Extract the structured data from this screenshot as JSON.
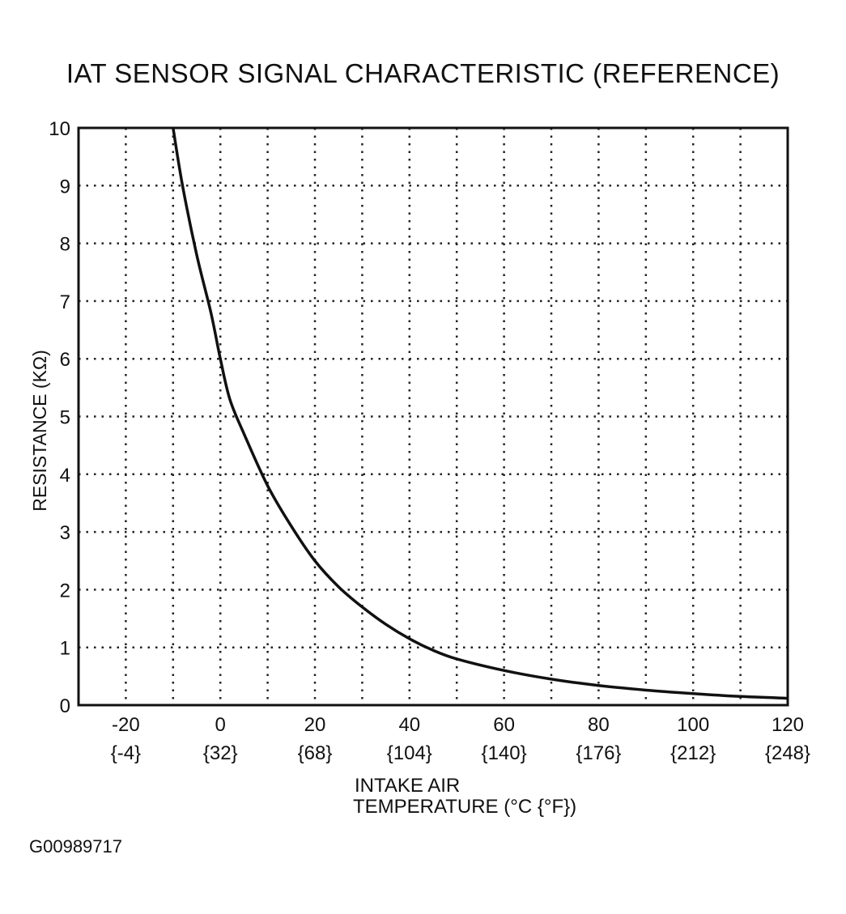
{
  "figure_id": "G00989717",
  "chart_data": {
    "type": "line",
    "title": "IAT SENSOR SIGNAL CHARACTERISTIC (REFERENCE)",
    "xlabel_lines": [
      "INTAKE AIR",
      "TEMPERATURE  (°C {°F})"
    ],
    "ylabel": "RESISTANCE (KΩ)",
    "xlim": [
      -30,
      120
    ],
    "ylim": [
      0,
      10
    ],
    "x_grid_step": 10,
    "y_grid_step": 1,
    "grid": true,
    "x_ticks": [
      {
        "c": "-20",
        "f": "{-4}",
        "value": -20
      },
      {
        "c": "0",
        "f": "{32}",
        "value": 0
      },
      {
        "c": "20",
        "f": "{68}",
        "value": 20
      },
      {
        "c": "40",
        "f": "{104}",
        "value": 40
      },
      {
        "c": "60",
        "f": "{140}",
        "value": 60
      },
      {
        "c": "80",
        "f": "{176}",
        "value": 80
      },
      {
        "c": "100",
        "f": "{212}",
        "value": 100
      },
      {
        "c": "120",
        "f": "{248}",
        "value": 120
      }
    ],
    "y_ticks": [
      "0",
      "1",
      "2",
      "3",
      "4",
      "5",
      "6",
      "7",
      "8",
      "9",
      "10"
    ],
    "series": [
      {
        "name": "IAT sensor resistance",
        "x": [
          -10,
          -8,
          -5,
          -2,
          0,
          2,
          5,
          10,
          15,
          20,
          25,
          30,
          35,
          40,
          45,
          50,
          60,
          70,
          80,
          90,
          100,
          110,
          120
        ],
        "y": [
          10,
          9.0,
          7.8,
          6.8,
          6.0,
          5.3,
          4.7,
          3.8,
          3.1,
          2.5,
          2.05,
          1.7,
          1.4,
          1.15,
          0.95,
          0.8,
          0.6,
          0.45,
          0.34,
          0.26,
          0.2,
          0.15,
          0.12
        ]
      }
    ]
  }
}
